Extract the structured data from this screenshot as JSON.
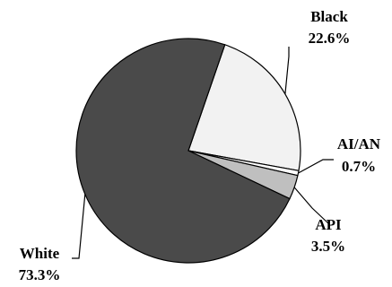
{
  "chart_data": {
    "type": "pie",
    "title": "",
    "start_angle_deg": 71,
    "direction": "clockwise",
    "slices": [
      {
        "name": "Black",
        "value": 22.6,
        "label": "22.6%",
        "color": "#f2f2f2"
      },
      {
        "name": "AI/AN",
        "value": 0.7,
        "label": "0.7%",
        "color": "#ffffff"
      },
      {
        "name": "API",
        "value": 3.5,
        "label": "3.5%",
        "color": "#bfbfbf"
      },
      {
        "name": "White",
        "value": 73.3,
        "label": "73.3%",
        "color": "#4a4a4a"
      }
    ]
  }
}
